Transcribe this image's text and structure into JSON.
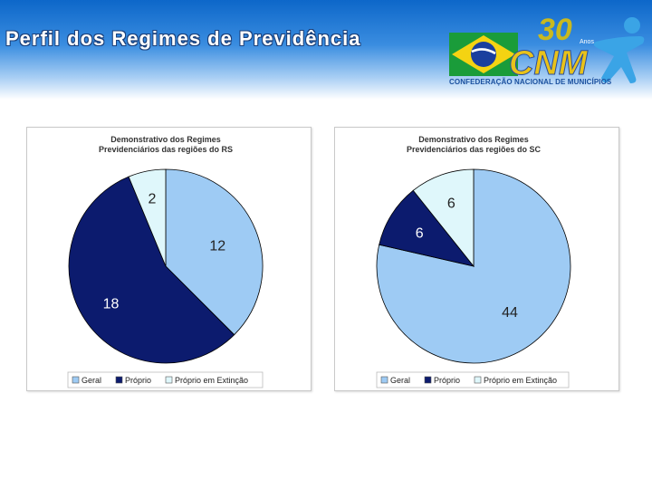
{
  "header": {
    "title": "Perfil dos Regimes de Previdência",
    "logo": {
      "anniversary_number": "30",
      "anniversary_word": "Anos",
      "acronym": "CNM",
      "org_name": "CONFEDERAÇÃO NACIONAL DE MUNICÍPIOS",
      "icons": [
        "brazil-flag-icon",
        "person-figure-icon"
      ]
    }
  },
  "colors": {
    "geral": "#9ecbf4",
    "proprio": "#0c1b6e",
    "proprio_extincao": "#dff7fb",
    "header_blue": "#0d67c9"
  },
  "chart_data": [
    {
      "type": "pie",
      "title": "Demonstrativo dos Regimes Previdenciários das regiões do RS",
      "title_lines": [
        "Demonstrativo dos Regimes",
        "Previdenciários das regiões do RS"
      ],
      "categories": [
        "Geral",
        "Próprio",
        "Próprio em Extinção"
      ],
      "values": [
        12,
        18,
        2
      ],
      "data_labels": [
        "12",
        "18",
        "2"
      ],
      "legend_position": "bottom"
    },
    {
      "type": "pie",
      "title": "Demonstrativo dos Regimes Previdenciários das regiões do SC",
      "title_lines": [
        "Demonstrativo dos Regimes",
        "Previdenciários das regiões do SC"
      ],
      "categories": [
        "Geral",
        "Próprio",
        "Próprio em Extinção"
      ],
      "values": [
        44,
        6,
        6
      ],
      "data_labels": [
        "44",
        "6",
        "6"
      ],
      "legend_position": "bottom"
    }
  ]
}
